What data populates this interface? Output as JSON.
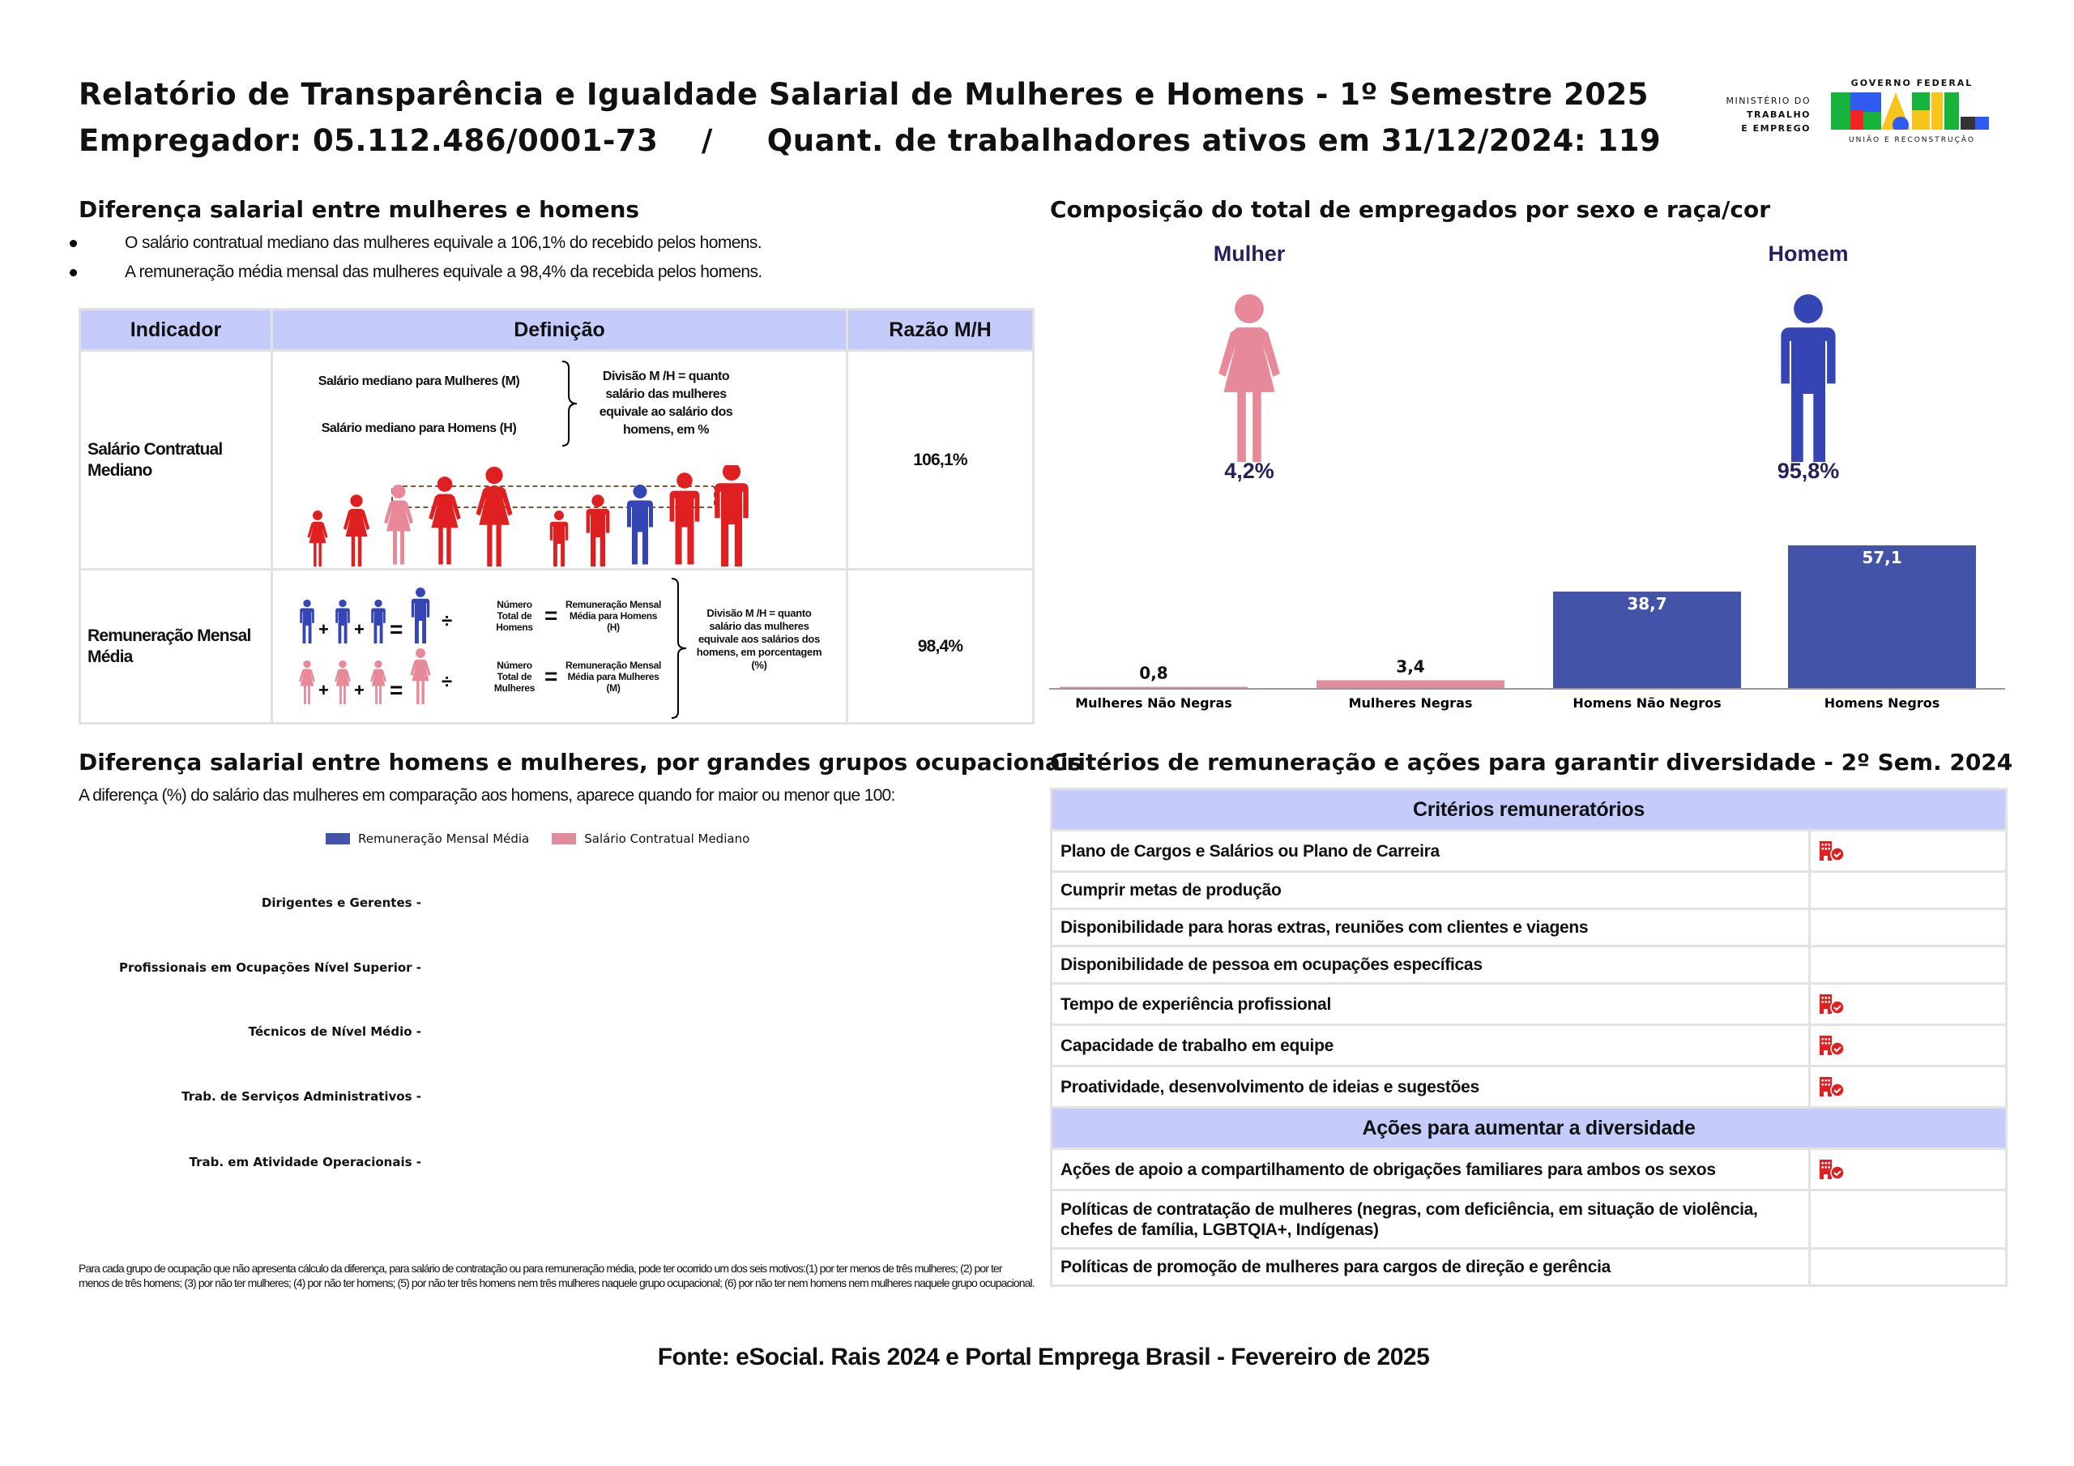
{
  "header": {
    "title": "Relatório de Transparência e Igualdade Salarial de Mulheres e Homens - 1º Semestre 2025",
    "subtitle": "Empregador: 05.112.486/0001-73    /     Quant. de trabalhadores ativos em 31/12/2024: 119",
    "logo": {
      "ministry_line1": "MINISTÉRIO DO",
      "ministry_line2": "TRABALHO",
      "ministry_line3": "E EMPREGO",
      "gov_top": "GOVERNO FEDERAL",
      "gov_word": "BRASIL",
      "gov_bottom": "UNIÃO E RECONSTRUÇÃO"
    }
  },
  "salary_gap": {
    "title": "Diferença salarial entre mulheres e homens",
    "bullets": [
      "O salário contratual mediano das mulheres equivale a 106,1% do recebido pelos homens.",
      "A remuneração média mensal das mulheres equivale a 98,4% da recebida pelos homens."
    ],
    "table": {
      "headers": [
        "Indicador",
        "Definição",
        "Razão M/H"
      ],
      "row1": {
        "indicator": "Salário Contratual Mediano",
        "def_women": "Salário mediano para Mulheres (M)",
        "def_men": "Salário mediano para Homens (H)",
        "def_result": "Divisão M /H = quanto salário das mulheres equivale ao salário dos homens, em %",
        "ratio": "106,1%"
      },
      "row2": {
        "indicator": "Remuneração Mensal Média",
        "men_total": "Número Total de Homens",
        "men_result": "Remuneração Mensal Média para Homens (H)",
        "women_total": "Número Total de Mulheres",
        "women_result": "Remuneração Mensal Média para Mulheres (M)",
        "def_result": "Divisão M /H = quanto salário das mulheres equivale aos salários dos homens, em porcentagem (%)",
        "ratio": "98,4%"
      }
    }
  },
  "composition": {
    "title": "Composição do total de empregados por sexo e raça/cor",
    "women_label": "Mulher",
    "women_pct": "4,2%",
    "men_label": "Homem",
    "men_pct": "95,8%"
  },
  "chart_data": [
    {
      "type": "bar",
      "categories": [
        "Mulheres Não Negras",
        "Mulheres Negras",
        "Homens Não Negros",
        "Homens Negros"
      ],
      "values": [
        0.8,
        3.4,
        38.7,
        57.1
      ],
      "data_labels": [
        "0,8",
        "3,4",
        "38,7",
        "57,1"
      ],
      "colors": [
        "#e08c9c",
        "#e08c9c",
        "#4353a8",
        "#4353a8"
      ],
      "grid": false
    },
    {
      "type": "bar",
      "orientation": "horizontal",
      "title": "Diferença salarial entre homens e mulheres, por grandes grupos ocupacionais",
      "subtitle": "A diferença (%) do salário das mulheres em comparação aos homens, aparece quando for maior ou menor que 100:",
      "categories": [
        "Dirigentes e Gerentes",
        "Profissionais em Ocupações Nível Superior",
        "Técnicos de Nível Médio",
        "Trab. de Serviços Administrativos",
        "Trab. em Atividade Operacionais"
      ],
      "series": [
        {
          "name": "Remuneração Mensal Média",
          "color": "#4353a8",
          "values": [
            null,
            null,
            null,
            null,
            null
          ]
        },
        {
          "name": "Salário Contratual Mediano",
          "color": "#e08c9c",
          "values": [
            null,
            null,
            null,
            null,
            null
          ]
        }
      ],
      "legend": "top",
      "grid": false
    }
  ],
  "footnote": "Para cada grupo de ocupação que não apresenta cálculo da diferença, para salário de contratação ou para remuneração média, pode ter ocorrido um dos seis motivos:(1) por ter menos de três mulheres; (2) por ter menos de três homens; (3) por não ter mulheres; (4) por não ter homens; (5) por não ter três homens nem três mulheres naquele grupo ocupacional; (6) por não ter nem homens nem mulheres naquele grupo ocupacional.",
  "criteria": {
    "title": "Critérios de remuneração e ações para garantir diversidade - 2º Sem. 2024",
    "criteria_header": "Critérios remuneratórios",
    "criteria_items": [
      {
        "label": "Plano de Cargos e Salários ou Plano de Carreira",
        "checked": true
      },
      {
        "label": "Cumprir metas de produção",
        "checked": false
      },
      {
        "label": "Disponibilidade para horas extras, reuniões com clientes e viagens",
        "checked": false
      },
      {
        "label": "Disponibilidade de pessoa em ocupações específicas",
        "checked": false
      },
      {
        "label": "Tempo de experiência profissional",
        "checked": true
      },
      {
        "label": "Capacidade de trabalho em equipe",
        "checked": true
      },
      {
        "label": "Proatividade, desenvolvimento de ideias e sugestões",
        "checked": true
      }
    ],
    "actions_header": "Ações para aumentar a diversidade",
    "action_items": [
      {
        "label": "Ações de apoio a compartilhamento de obrigações familiares para ambos os sexos",
        "checked": true
      },
      {
        "label": "Políticas de contratação de mulheres (negras, com deficiência, em situação de violência, chefes de família, LGBTQIA+, Indígenas)",
        "checked": false
      },
      {
        "label": "Políticas de promoção de mulheres para cargos de direção e gerência",
        "checked": false
      }
    ],
    "icon": "building-check-icon",
    "icon_color": "#e02020"
  },
  "source": "Fonte: eSocial. Rais 2024 e Portal Emprega Brasil - Fevereiro de 2025"
}
